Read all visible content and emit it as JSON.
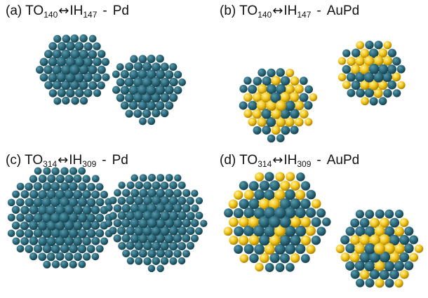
{
  "colors": {
    "pd": "#2a6a7c",
    "au": "#f0c419",
    "background": "#ffffff"
  },
  "panels": [
    {
      "id": "a",
      "label": "(a)",
      "left_name": "TO",
      "left_sub": "140",
      "arrow": "↔",
      "right_name": "IH",
      "right_sub": "147",
      "dash": "-",
      "composition": "Pd",
      "clusters": [
        {
          "shape": "truncated-octahedron",
          "alloy": false
        },
        {
          "shape": "icosahedron",
          "alloy": false
        }
      ]
    },
    {
      "id": "b",
      "label": "(b)",
      "left_name": "TO",
      "left_sub": "140",
      "arrow": "↔",
      "right_name": "IH",
      "right_sub": "147",
      "dash": "-",
      "composition": "AuPd",
      "clusters": [
        {
          "shape": "truncated-octahedron",
          "alloy": true
        },
        {
          "shape": "icosahedron",
          "alloy": true
        }
      ]
    },
    {
      "id": "c",
      "label": "(c)",
      "left_name": "TO",
      "left_sub": "314",
      "arrow": "↔",
      "right_name": "IH",
      "right_sub": "309",
      "dash": "-",
      "composition": "Pd",
      "clusters": [
        {
          "shape": "truncated-octahedron",
          "alloy": false
        },
        {
          "shape": "icosahedron",
          "alloy": false
        }
      ]
    },
    {
      "id": "d",
      "label": "(d)",
      "left_name": "TO",
      "left_sub": "314",
      "arrow": "↔",
      "right_name": "IH",
      "right_sub": "309",
      "dash": "-",
      "composition": "AuPd",
      "clusters": [
        {
          "shape": "truncated-octahedron",
          "alloy": true
        },
        {
          "shape": "icosahedron",
          "alloy": true
        }
      ]
    }
  ]
}
